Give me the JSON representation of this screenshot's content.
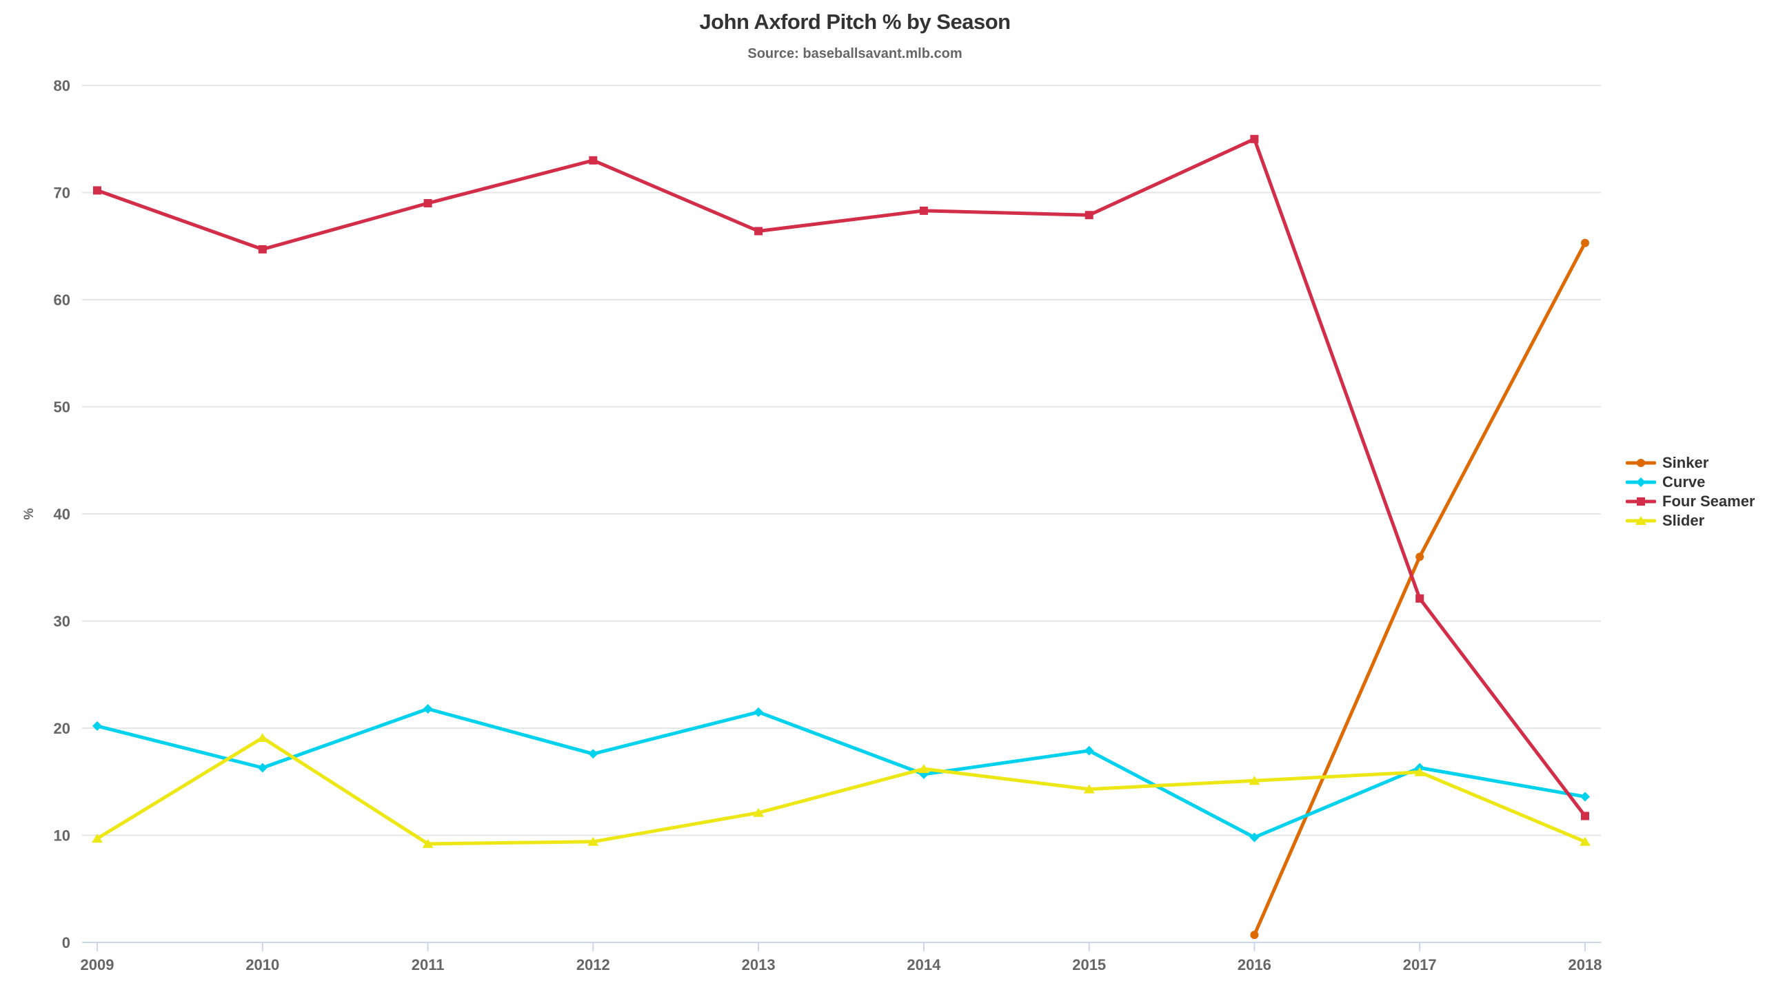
{
  "chart_data": {
    "type": "line",
    "title": "John Axford Pitch % by Season",
    "subtitle": "Source: baseballsavant.mlb.com",
    "xlabel": "",
    "ylabel": "%",
    "x": [
      2009,
      2010,
      2011,
      2012,
      2013,
      2014,
      2015,
      2016,
      2017,
      2018
    ],
    "ylim": [
      0,
      80
    ],
    "yticks": [
      0,
      10,
      20,
      30,
      40,
      50,
      60,
      70,
      80
    ],
    "grid": true,
    "legend_position": "right",
    "series": [
      {
        "name": "Sinker",
        "color": "#DE6A04",
        "marker": "circle",
        "values": [
          null,
          null,
          null,
          null,
          null,
          null,
          null,
          0.7,
          36.0,
          65.3
        ]
      },
      {
        "name": "Curve",
        "color": "#00D1ED",
        "marker": "diamond",
        "values": [
          20.2,
          16.3,
          21.8,
          17.6,
          21.5,
          15.7,
          17.9,
          9.8,
          16.3,
          13.6
        ]
      },
      {
        "name": "Four Seamer",
        "color": "#D22D49",
        "marker": "square",
        "values": [
          70.2,
          64.7,
          69.0,
          73.0,
          66.4,
          68.3,
          67.9,
          75.0,
          32.1,
          11.8
        ]
      },
      {
        "name": "Slider",
        "color": "#EEE716",
        "marker": "triangle",
        "values": [
          9.7,
          19.1,
          9.2,
          9.4,
          12.1,
          16.2,
          14.3,
          15.1,
          15.9,
          9.4
        ]
      }
    ],
    "colors": {
      "grid_line": "#e6e6e6",
      "axis_line": "#ccd6eb",
      "tick_label": "#666666",
      "title": "#333333",
      "subtitle": "#666666",
      "legend_text": "#333333"
    }
  }
}
